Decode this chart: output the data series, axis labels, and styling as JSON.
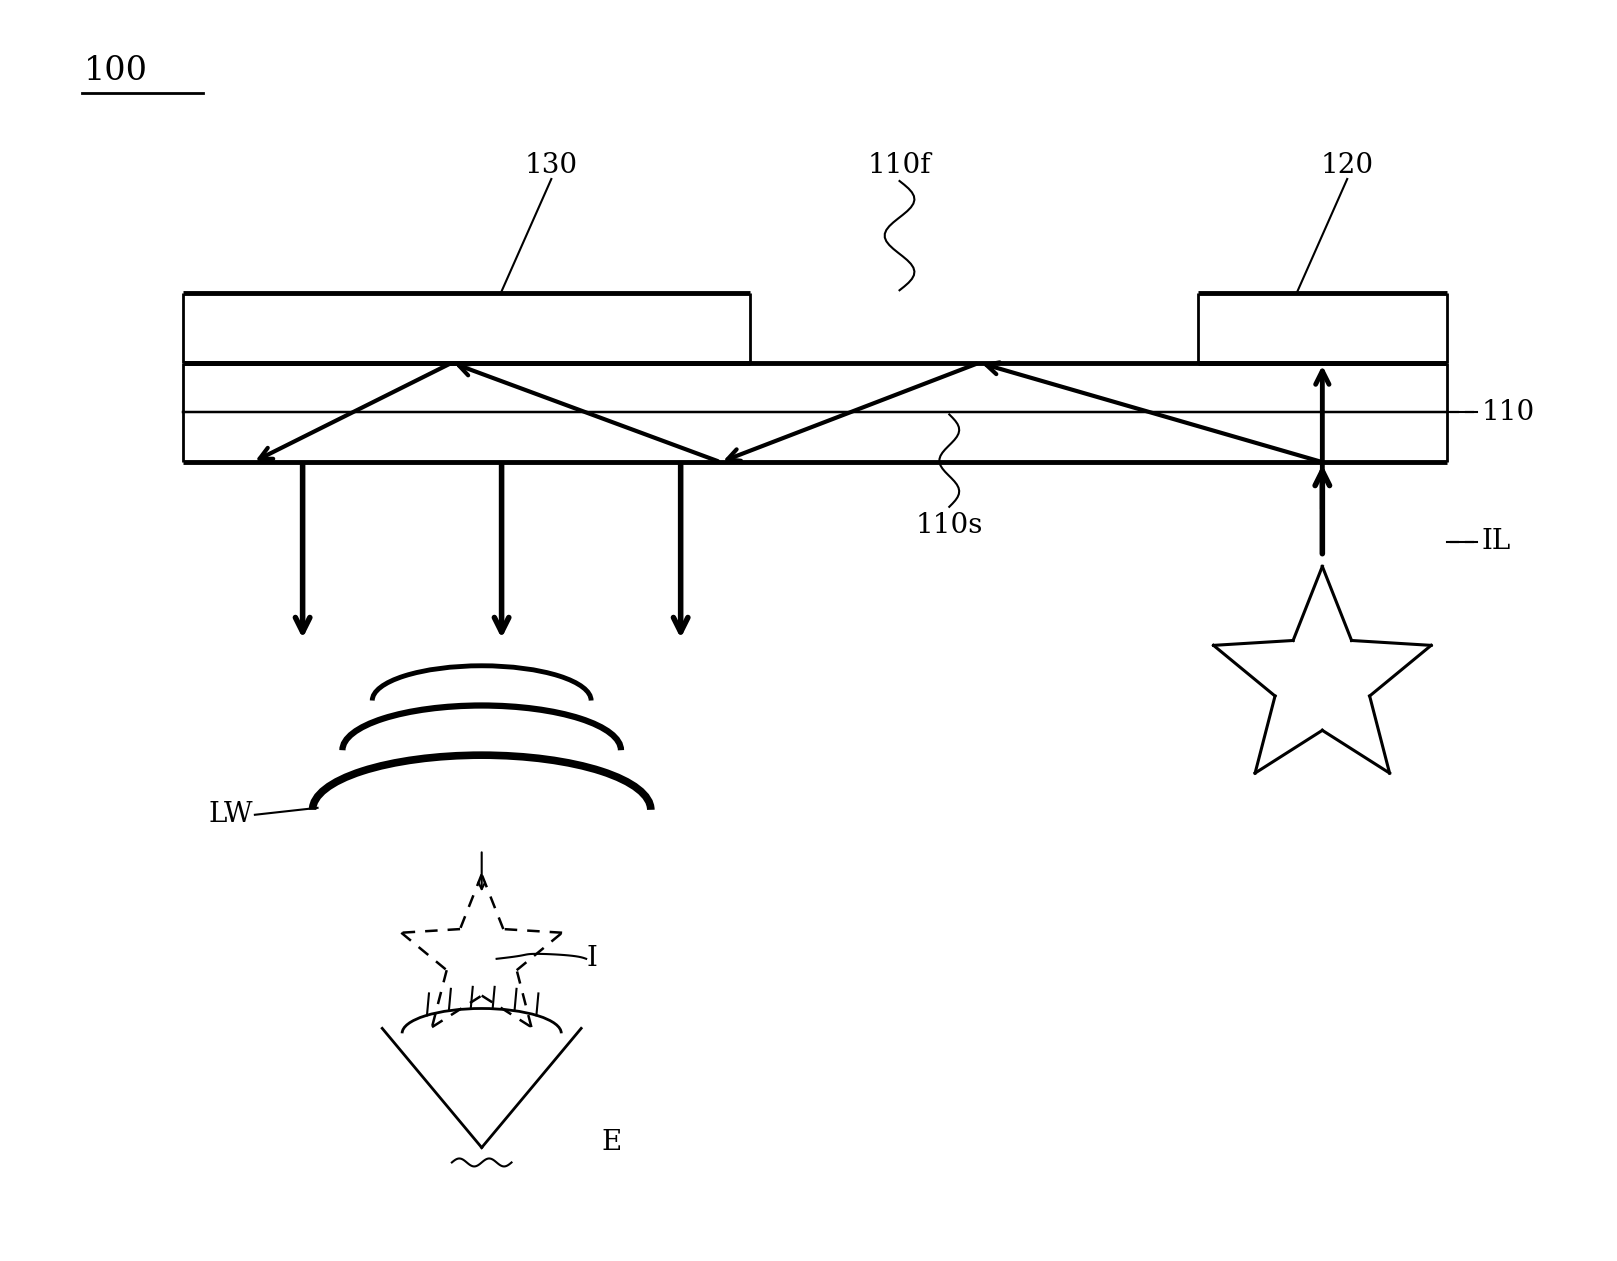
{
  "bg_color": "#ffffff",
  "line_color": "#000000",
  "label_100": "100",
  "label_130": "130",
  "label_110f": "110f",
  "label_120": "120",
  "label_110": "110",
  "label_110s": "110s",
  "label_IL": "IL",
  "label_LW": "LW",
  "label_I": "I",
  "label_E": "E"
}
